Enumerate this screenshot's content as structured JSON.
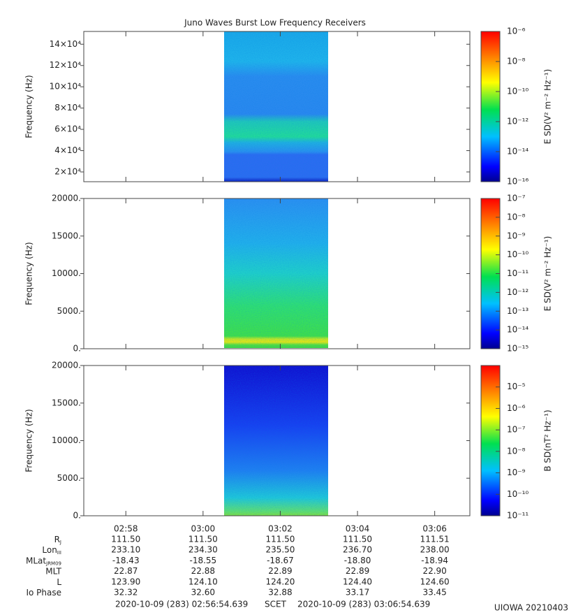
{
  "title": "Juno Waves Burst Low Frequency Receivers",
  "time_axis": {
    "xlim": [
      "2020-10-09T02:56:54.639",
      "2020-10-09T03:06:54.639"
    ],
    "xticks": [
      {
        "value": "2020-10-09T02:58:00",
        "label": "02:58"
      },
      {
        "value": "2020-10-09T03:00:00",
        "label": "03:00"
      },
      {
        "value": "2020-10-09T03:02:00",
        "label": "03:02"
      },
      {
        "value": "2020-10-09T03:04:00",
        "label": "03:04"
      },
      {
        "value": "2020-10-09T03:06:00",
        "label": "03:06"
      }
    ]
  },
  "chart_data": [
    {
      "type": "spectrogram",
      "ylabel": "Frequency (Hz)",
      "ylim": [
        10800,
        152000
      ],
      "yticks": [
        {
          "value": 20000,
          "label": "2×10⁴"
        },
        {
          "value": 40000,
          "label": "4×10⁴"
        },
        {
          "value": 60000,
          "label": "6×10⁴"
        },
        {
          "value": 80000,
          "label": "8×10⁴"
        },
        {
          "value": 100000,
          "label": "10×10⁴"
        },
        {
          "value": 120000,
          "label": "12×10⁴"
        },
        {
          "value": 140000,
          "label": "14×10⁴"
        }
      ],
      "colorbar": {
        "label": "E SD(V² m⁻² Hz⁻¹)",
        "log": true,
        "lim": [
          1e-16,
          1e-06
        ],
        "ticks": [
          {
            "value": 1e-16,
            "label": "10⁻¹⁶"
          },
          {
            "value": 1e-14,
            "label": "10⁻¹⁴"
          },
          {
            "value": 1e-12,
            "label": "10⁻¹²"
          },
          {
            "value": 1e-10,
            "label": "10⁻¹⁰"
          },
          {
            "value": 1e-08,
            "label": "10⁻⁸"
          },
          {
            "value": 1e-06,
            "label": "10⁻⁶"
          }
        ]
      }
    },
    {
      "type": "spectrogram",
      "ylabel": "Frequency (Hz)",
      "ylim": [
        0,
        20000
      ],
      "yticks": [
        {
          "value": 0,
          "label": "0."
        },
        {
          "value": 5000,
          "label": "5000."
        },
        {
          "value": 10000,
          "label": "10000."
        },
        {
          "value": 15000,
          "label": "15000."
        },
        {
          "value": 20000,
          "label": "20000."
        }
      ],
      "colorbar": {
        "label": "E SD(V² m⁻² Hz⁻¹)",
        "log": true,
        "lim": [
          1e-15,
          1e-07
        ],
        "ticks": [
          {
            "value": 1e-15,
            "label": "10⁻¹⁵"
          },
          {
            "value": 1e-14,
            "label": "10⁻¹⁴"
          },
          {
            "value": 1e-13,
            "label": "10⁻¹³"
          },
          {
            "value": 1e-12,
            "label": "10⁻¹²"
          },
          {
            "value": 1e-11,
            "label": "10⁻¹¹"
          },
          {
            "value": 1e-10,
            "label": "10⁻¹⁰"
          },
          {
            "value": 1e-09,
            "label": "10⁻⁹"
          },
          {
            "value": 1e-08,
            "label": "10⁻⁸"
          },
          {
            "value": 1e-07,
            "label": "10⁻⁷"
          }
        ]
      }
    },
    {
      "type": "spectrogram",
      "ylabel": "Frequency (Hz)",
      "ylim": [
        0,
        20000
      ],
      "yticks": [
        {
          "value": 0,
          "label": "0."
        },
        {
          "value": 5000,
          "label": "5000."
        },
        {
          "value": 10000,
          "label": "10000."
        },
        {
          "value": 15000,
          "label": "15000."
        },
        {
          "value": 20000,
          "label": "20000."
        }
      ],
      "colorbar": {
        "label": "B SD(nT² Hz⁻¹)",
        "log": true,
        "lim": [
          1e-11,
          0.0001
        ],
        "ticks": [
          {
            "value": 1e-11,
            "label": "10⁻¹¹"
          },
          {
            "value": 1e-10,
            "label": "10⁻¹⁰"
          },
          {
            "value": 1e-09,
            "label": "10⁻⁹"
          },
          {
            "value": 1e-08,
            "label": "10⁻⁸"
          },
          {
            "value": 1e-07,
            "label": "10⁻⁷"
          },
          {
            "value": 1e-06,
            "label": "10⁻⁶"
          },
          {
            "value": 1e-05,
            "label": "10⁻⁵"
          }
        ]
      }
    }
  ],
  "ephemeris": {
    "rows": [
      {
        "label": {
          "text": "R",
          "sub": "J"
        },
        "values": [
          "111.50",
          "111.50",
          "111.50",
          "111.50",
          "111.51"
        ]
      },
      {
        "label": {
          "text": "Lon",
          "sub": "III"
        },
        "values": [
          "233.10",
          "234.30",
          "235.50",
          "236.70",
          "238.00"
        ]
      },
      {
        "label": {
          "text": "MLat",
          "sub": "JRM09"
        },
        "values": [
          "-18.43",
          "-18.55",
          "-18.67",
          "-18.80",
          "-18.94"
        ]
      },
      {
        "label": {
          "text": "MLT"
        },
        "values": [
          "22.87",
          "22.88",
          "22.89",
          "22.89",
          "22.90"
        ]
      },
      {
        "label": {
          "text": "L"
        },
        "values": [
          "123.90",
          "124.10",
          "124.20",
          "124.40",
          "124.60"
        ]
      },
      {
        "label": {
          "text": "Io Phase"
        },
        "values": [
          "32.32",
          "32.60",
          "32.88",
          "33.17",
          "33.45"
        ]
      }
    ]
  },
  "footer": {
    "start": "2020-10-09 (283) 02:56:54.639",
    "middle": "SCET",
    "end": "2020-10-09 (283) 03:06:54.639",
    "credit": "UIOWA 20210403"
  }
}
